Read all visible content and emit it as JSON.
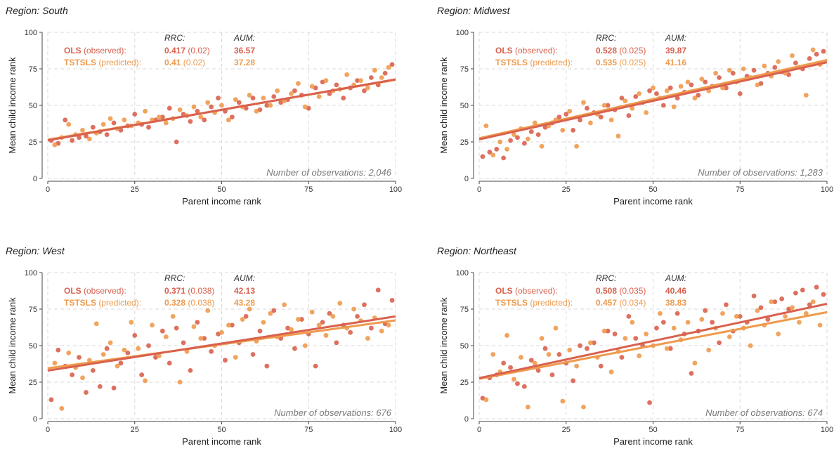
{
  "colors": {
    "ols": "#d9614e",
    "tstsls": "#ee9a4d",
    "axis": "#444444",
    "grid": "#d9d9d9",
    "nobs_text": "#7a7a7a"
  },
  "labels": {
    "rrc_header": "RRC:",
    "aum_header": "AUM:",
    "ols_name": "OLS",
    "ols_suffix": "(observed):",
    "tstsls_name": "TSTSLS",
    "tstsls_suffix": "(predicted):"
  },
  "chart_data": [
    {
      "type": "scatter",
      "title": "Region: South",
      "xlabel": "Parent income rank",
      "ylabel": "Mean child income rank",
      "xlim": [
        0,
        100
      ],
      "ylim": [
        0,
        100
      ],
      "xticks": [
        "0",
        "25",
        "50",
        "75",
        "100"
      ],
      "yticks": [
        "0",
        "25",
        "50",
        "75",
        "100"
      ],
      "grid": true,
      "nobs_label": "Number of observations: 2,046",
      "stats": {
        "ols": {
          "rrc": "0.417",
          "rrc_se": "(0.02)",
          "aum": "36.57"
        },
        "tstsls": {
          "rrc": "0.41",
          "rrc_se": "(0.02)",
          "aum": "37.28"
        }
      },
      "series": [
        {
          "name": "OLS",
          "fit": {
            "intercept": 26.1,
            "slope": 0.417
          },
          "x": [
            1,
            3,
            5,
            7,
            9,
            11,
            13,
            15,
            17,
            19,
            21,
            23,
            25,
            27,
            29,
            31,
            33,
            35,
            37,
            39,
            41,
            43,
            45,
            47,
            49,
            51,
            53,
            55,
            57,
            59,
            61,
            63,
            65,
            67,
            69,
            71,
            73,
            75,
            77,
            79,
            81,
            83,
            85,
            87,
            89,
            91,
            93,
            95,
            97,
            99
          ],
          "y": [
            26,
            24,
            40,
            26,
            28,
            29,
            35,
            32,
            30,
            38,
            33,
            36,
            44,
            37,
            35,
            40,
            42,
            48,
            25,
            44,
            39,
            46,
            40,
            49,
            55,
            46,
            42,
            52,
            48,
            55,
            47,
            50,
            56,
            52,
            54,
            60,
            57,
            48,
            62,
            66,
            58,
            64,
            55,
            62,
            67,
            60,
            69,
            64,
            72,
            78
          ]
        },
        {
          "name": "TSTSLS",
          "fit": {
            "intercept": 26.5,
            "slope": 0.41
          },
          "x": [
            2,
            4,
            6,
            8,
            10,
            12,
            14,
            16,
            18,
            20,
            22,
            24,
            26,
            28,
            30,
            32,
            34,
            36,
            38,
            40,
            42,
            44,
            46,
            48,
            50,
            52,
            54,
            56,
            58,
            60,
            62,
            64,
            66,
            68,
            70,
            72,
            74,
            76,
            78,
            80,
            82,
            84,
            86,
            88,
            90,
            92,
            94,
            96,
            98
          ],
          "y": [
            23,
            28,
            37,
            30,
            33,
            27,
            31,
            37,
            41,
            34,
            40,
            36,
            38,
            46,
            40,
            42,
            38,
            41,
            47,
            43,
            49,
            42,
            52,
            45,
            50,
            40,
            54,
            49,
            57,
            46,
            55,
            50,
            60,
            53,
            58,
            65,
            49,
            63,
            56,
            67,
            60,
            61,
            71,
            64,
            67,
            62,
            74,
            69,
            76
          ]
        }
      ]
    },
    {
      "type": "scatter",
      "title": "Region: Midwest",
      "xlabel": "Parent income rank",
      "ylabel": "Mean child income rank",
      "xlim": [
        0,
        100
      ],
      "ylim": [
        0,
        100
      ],
      "xticks": [
        "0",
        "25",
        "50",
        "75",
        "100"
      ],
      "yticks": [
        "0",
        "25",
        "50",
        "75",
        "100"
      ],
      "grid": true,
      "nobs_label": "Number of observations: 1,283",
      "stats": {
        "ols": {
          "rrc": "0.528",
          "rrc_se": "(0.025)",
          "aum": "39.87"
        },
        "tstsls": {
          "rrc": "0.535",
          "rrc_se": "(0.025)",
          "aum": "41.16"
        }
      },
      "series": [
        {
          "name": "OLS",
          "fit": {
            "intercept": 26.7,
            "slope": 0.528
          },
          "x": [
            1,
            3,
            5,
            7,
            9,
            11,
            13,
            15,
            17,
            19,
            21,
            23,
            25,
            27,
            29,
            31,
            33,
            35,
            37,
            39,
            41,
            43,
            45,
            47,
            49,
            51,
            53,
            55,
            57,
            59,
            61,
            63,
            65,
            67,
            69,
            71,
            73,
            75,
            77,
            79,
            81,
            83,
            85,
            87,
            89,
            91,
            93,
            95,
            97,
            99
          ],
          "y": [
            15,
            18,
            20,
            14,
            26,
            28,
            24,
            32,
            30,
            35,
            38,
            42,
            44,
            33,
            40,
            48,
            45,
            42,
            50,
            47,
            55,
            43,
            56,
            52,
            60,
            58,
            50,
            62,
            55,
            59,
            64,
            57,
            66,
            63,
            69,
            62,
            72,
            58,
            70,
            74,
            65,
            72,
            76,
            73,
            71,
            79,
            75,
            82,
            85,
            87
          ]
        },
        {
          "name": "TSTSLS",
          "fit": {
            "intercept": 27.5,
            "slope": 0.535
          },
          "x": [
            2,
            4,
            6,
            8,
            10,
            12,
            14,
            16,
            18,
            20,
            22,
            24,
            26,
            28,
            30,
            32,
            34,
            36,
            38,
            40,
            42,
            44,
            46,
            48,
            50,
            52,
            54,
            56,
            58,
            60,
            62,
            64,
            66,
            68,
            70,
            72,
            74,
            76,
            78,
            80,
            82,
            84,
            86,
            88,
            90,
            92,
            94,
            96,
            98
          ],
          "y": [
            36,
            16,
            25,
            20,
            30,
            34,
            27,
            38,
            22,
            36,
            40,
            33,
            46,
            22,
            52,
            38,
            44,
            50,
            40,
            29,
            53,
            48,
            58,
            45,
            62,
            55,
            60,
            49,
            63,
            66,
            55,
            68,
            60,
            72,
            62,
            74,
            66,
            75,
            69,
            64,
            77,
            70,
            80,
            72,
            84,
            76,
            57,
            88,
            78
          ]
        }
      ]
    },
    {
      "type": "scatter",
      "title": "Region: West",
      "xlabel": "Parent income rank",
      "ylabel": "Mean child income rank",
      "xlim": [
        0,
        100
      ],
      "ylim": [
        0,
        100
      ],
      "xticks": [
        "0",
        "25",
        "50",
        "75",
        "100"
      ],
      "yticks": [
        "0",
        "25",
        "50",
        "75",
        "100"
      ],
      "grid": true,
      "nobs_label": "Number of observations: 676",
      "stats": {
        "ols": {
          "rrc": "0.371",
          "rrc_se": "(0.038)",
          "aum": "42.13"
        },
        "tstsls": {
          "rrc": "0.328",
          "rrc_se": "(0.038)",
          "aum": "43.28"
        }
      },
      "series": [
        {
          "name": "OLS",
          "fit": {
            "intercept": 32.9,
            "slope": 0.371
          },
          "x": [
            1,
            3,
            5,
            7,
            9,
            11,
            13,
            15,
            17,
            19,
            21,
            23,
            25,
            27,
            29,
            31,
            33,
            35,
            37,
            39,
            41,
            43,
            45,
            47,
            49,
            51,
            53,
            55,
            57,
            59,
            61,
            63,
            65,
            67,
            69,
            71,
            73,
            75,
            77,
            79,
            81,
            83,
            85,
            87,
            89,
            91,
            93,
            95,
            97,
            99
          ],
          "y": [
            13,
            47,
            36,
            30,
            42,
            18,
            33,
            22,
            48,
            21,
            38,
            45,
            57,
            30,
            50,
            42,
            60,
            38,
            62,
            52,
            33,
            66,
            55,
            46,
            58,
            40,
            64,
            52,
            70,
            44,
            60,
            36,
            74,
            55,
            62,
            48,
            68,
            58,
            36,
            66,
            72,
            52,
            64,
            59,
            70,
            78,
            62,
            88,
            65,
            81
          ]
        },
        {
          "name": "TSTSLS",
          "fit": {
            "intercept": 34.5,
            "slope": 0.328
          },
          "x": [
            2,
            4,
            6,
            8,
            10,
            12,
            14,
            16,
            18,
            20,
            22,
            24,
            26,
            28,
            30,
            32,
            34,
            36,
            38,
            40,
            42,
            44,
            46,
            48,
            50,
            52,
            54,
            56,
            58,
            60,
            62,
            64,
            66,
            68,
            70,
            72,
            74,
            76,
            78,
            80,
            82,
            84,
            86,
            88,
            90,
            92,
            94,
            96,
            98
          ],
          "y": [
            38,
            7,
            45,
            35,
            28,
            40,
            65,
            44,
            52,
            36,
            47,
            66,
            48,
            26,
            64,
            43,
            56,
            70,
            25,
            46,
            63,
            55,
            74,
            50,
            59,
            64,
            42,
            68,
            75,
            53,
            66,
            72,
            56,
            78,
            61,
            68,
            50,
            73,
            64,
            57,
            70,
            79,
            62,
            75,
            67,
            55,
            69,
            60,
            64
          ]
        }
      ]
    },
    {
      "type": "scatter",
      "title": "Region: Northeast",
      "xlabel": "Parent income rank",
      "ylabel": "Mean child income rank",
      "xlim": [
        0,
        100
      ],
      "ylim": [
        0,
        100
      ],
      "xticks": [
        "0",
        "25",
        "50",
        "75",
        "100"
      ],
      "yticks": [
        "0",
        "25",
        "50",
        "75",
        "100"
      ],
      "grid": true,
      "nobs_label": "Number of observations: 674",
      "stats": {
        "ols": {
          "rrc": "0.508",
          "rrc_se": "(0.035)",
          "aum": "40.46"
        },
        "tstsls": {
          "rrc": "0.457",
          "rrc_se": "(0.034)",
          "aum": "38.83"
        }
      },
      "series": [
        {
          "name": "OLS",
          "fit": {
            "intercept": 27.8,
            "slope": 0.508
          },
          "x": [
            1,
            3,
            5,
            7,
            9,
            11,
            13,
            15,
            17,
            19,
            21,
            23,
            25,
            27,
            29,
            31,
            33,
            35,
            37,
            39,
            41,
            43,
            45,
            47,
            49,
            51,
            53,
            55,
            57,
            59,
            61,
            63,
            65,
            67,
            69,
            71,
            73,
            75,
            77,
            79,
            81,
            83,
            85,
            87,
            89,
            91,
            93,
            95,
            97,
            99
          ],
          "y": [
            14,
            28,
            30,
            38,
            35,
            24,
            22,
            40,
            33,
            48,
            30,
            44,
            38,
            26,
            50,
            48,
            52,
            36,
            60,
            58,
            42,
            70,
            55,
            50,
            11,
            62,
            66,
            48,
            72,
            58,
            31,
            60,
            74,
            66,
            52,
            78,
            60,
            70,
            66,
            84,
            76,
            68,
            80,
            82,
            75,
            86,
            88,
            78,
            90,
            85
          ]
        },
        {
          "name": "TSTSLS",
          "fit": {
            "intercept": 27.2,
            "slope": 0.457
          },
          "x": [
            2,
            4,
            6,
            8,
            10,
            12,
            14,
            16,
            18,
            20,
            22,
            24,
            26,
            28,
            30,
            32,
            34,
            36,
            38,
            40,
            42,
            44,
            46,
            48,
            50,
            52,
            54,
            56,
            58,
            60,
            62,
            64,
            66,
            68,
            70,
            72,
            74,
            76,
            78,
            80,
            82,
            84,
            86,
            88,
            90,
            92,
            94,
            96,
            98
          ],
          "y": [
            13,
            44,
            32,
            57,
            27,
            42,
            8,
            38,
            55,
            44,
            62,
            12,
            47,
            36,
            8,
            52,
            42,
            60,
            32,
            46,
            55,
            66,
            43,
            58,
            50,
            72,
            48,
            62,
            54,
            66,
            38,
            68,
            47,
            62,
            72,
            56,
            70,
            62,
            50,
            74,
            64,
            80,
            58,
            70,
            76,
            66,
            72,
            80,
            64
          ]
        }
      ]
    }
  ]
}
